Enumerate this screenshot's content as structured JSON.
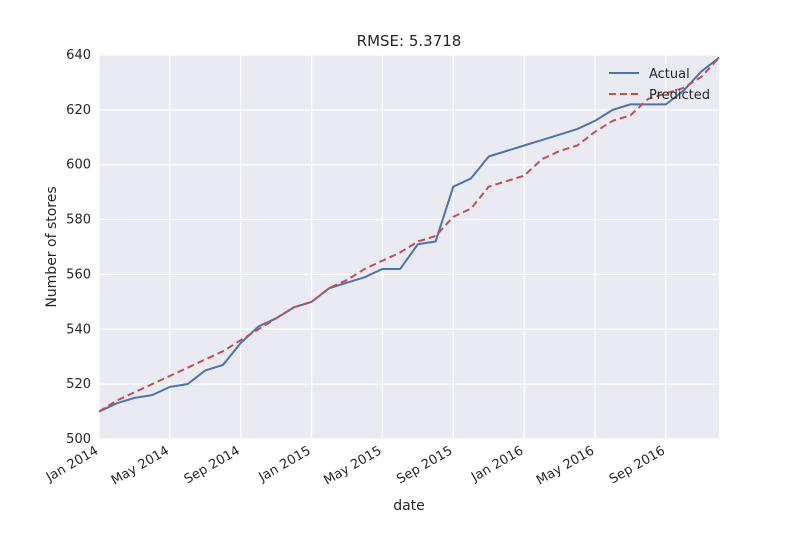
{
  "chart_data": {
    "type": "line",
    "title": "RMSE: 5.3718",
    "xlabel": "date",
    "ylabel": "Number of stores",
    "x_range": [
      "2014-01",
      "2016-12"
    ],
    "ylim": [
      500,
      640
    ],
    "y_ticks": [
      500,
      520,
      540,
      560,
      580,
      600,
      620,
      640
    ],
    "x_ticks": [
      {
        "date": "2014-01",
        "label": "Jan 2014"
      },
      {
        "date": "2014-05",
        "label": "May 2014"
      },
      {
        "date": "2014-09",
        "label": "Sep 2014"
      },
      {
        "date": "2015-01",
        "label": "Jan 2015"
      },
      {
        "date": "2015-05",
        "label": "May 2015"
      },
      {
        "date": "2015-09",
        "label": "Sep 2015"
      },
      {
        "date": "2016-01",
        "label": "Jan 2016"
      },
      {
        "date": "2016-05",
        "label": "May 2016"
      },
      {
        "date": "2016-09",
        "label": "Sep 2016"
      }
    ],
    "grid": true,
    "background": "#eaeaf2",
    "legend_position": "top-right",
    "series": [
      {
        "name": "Actual",
        "color": "#4c72b0",
        "style": "solid",
        "points": [
          [
            "2014-01",
            510
          ],
          [
            "2014-02",
            513
          ],
          [
            "2014-03",
            515
          ],
          [
            "2014-04",
            516
          ],
          [
            "2014-05",
            519
          ],
          [
            "2014-06",
            520
          ],
          [
            "2014-07",
            525
          ],
          [
            "2014-08",
            527
          ],
          [
            "2014-09",
            535
          ],
          [
            "2014-10",
            541
          ],
          [
            "2014-11",
            544
          ],
          [
            "2014-12",
            548
          ],
          [
            "2015-01",
            550
          ],
          [
            "2015-02",
            555
          ],
          [
            "2015-03",
            557
          ],
          [
            "2015-04",
            559
          ],
          [
            "2015-05",
            562
          ],
          [
            "2015-06",
            562
          ],
          [
            "2015-07",
            571
          ],
          [
            "2015-08",
            572
          ],
          [
            "2015-09",
            592
          ],
          [
            "2015-10",
            595
          ],
          [
            "2015-11",
            603
          ],
          [
            "2015-12",
            605
          ],
          [
            "2016-01",
            607
          ],
          [
            "2016-02",
            609
          ],
          [
            "2016-03",
            611
          ],
          [
            "2016-04",
            613
          ],
          [
            "2016-05",
            616
          ],
          [
            "2016-06",
            620
          ],
          [
            "2016-07",
            622
          ],
          [
            "2016-08",
            622
          ],
          [
            "2016-09",
            622
          ],
          [
            "2016-10",
            627
          ],
          [
            "2016-11",
            634
          ],
          [
            "2016-12",
            639
          ]
        ]
      },
      {
        "name": "Predicted",
        "color": "#c44e52",
        "style": "dashed",
        "points": [
          [
            "2014-01",
            510
          ],
          [
            "2014-02",
            514
          ],
          [
            "2014-03",
            517
          ],
          [
            "2014-04",
            520
          ],
          [
            "2014-05",
            523
          ],
          [
            "2014-06",
            526
          ],
          [
            "2014-07",
            529
          ],
          [
            "2014-08",
            532
          ],
          [
            "2014-09",
            536
          ],
          [
            "2014-10",
            540
          ],
          [
            "2014-11",
            544
          ],
          [
            "2014-12",
            548
          ],
          [
            "2015-01",
            550
          ],
          [
            "2015-02",
            555
          ],
          [
            "2015-03",
            558
          ],
          [
            "2015-04",
            562
          ],
          [
            "2015-05",
            565
          ],
          [
            "2015-06",
            568
          ],
          [
            "2015-07",
            572
          ],
          [
            "2015-08",
            574
          ],
          [
            "2015-09",
            581
          ],
          [
            "2015-10",
            584
          ],
          [
            "2015-11",
            592
          ],
          [
            "2015-12",
            594
          ],
          [
            "2016-01",
            596
          ],
          [
            "2016-02",
            602
          ],
          [
            "2016-03",
            605
          ],
          [
            "2016-04",
            607
          ],
          [
            "2016-05",
            612
          ],
          [
            "2016-06",
            616
          ],
          [
            "2016-07",
            618
          ],
          [
            "2016-08",
            624
          ],
          [
            "2016-09",
            626
          ],
          [
            "2016-10",
            628
          ],
          [
            "2016-11",
            632
          ],
          [
            "2016-12",
            639
          ]
        ]
      }
    ]
  }
}
